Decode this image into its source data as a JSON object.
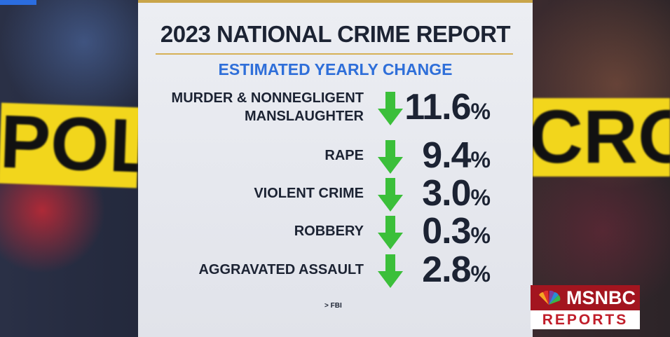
{
  "background": {
    "tape_left": "POLIC",
    "tape_right": "CROSS"
  },
  "header": {
    "title": "2023 NATIONAL CRIME REPORT",
    "subtitle": "ESTIMATED YEARLY CHANGE"
  },
  "rows": [
    {
      "label_lines": [
        "MURDER & NONNEGLIGENT",
        "MANSLAUGHTER"
      ],
      "value": "11.6",
      "unit": "%"
    },
    {
      "label_lines": [
        "RAPE"
      ],
      "value": "9.4",
      "unit": "%"
    },
    {
      "label_lines": [
        "VIOLENT CRIME"
      ],
      "value": "3.0",
      "unit": "%"
    },
    {
      "label_lines": [
        "ROBBERY"
      ],
      "value": "0.3",
      "unit": "%"
    },
    {
      "label_lines": [
        "AGGRAVATED ASSAULT"
      ],
      "value": "2.8",
      "unit": "%"
    }
  ],
  "source": "> FBI",
  "logo": {
    "top": "MSNBC",
    "bottom": "REPORTS"
  }
}
